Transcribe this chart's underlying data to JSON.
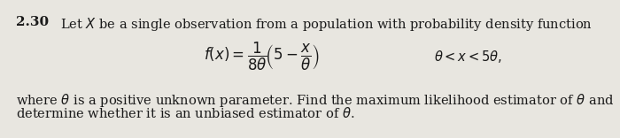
{
  "problem_number": "2.30",
  "line1": "Let $X$ be a single observation from a population with probability density function",
  "formula": "$f(x) = \\dfrac{1}{8\\theta}\\!\\left(5 - \\dfrac{x}{\\theta}\\right)$",
  "condition": "$\\theta < x < 5\\theta,$",
  "line2": "where $\\theta$ is a positive unknown parameter. Find the maximum likelihood estimator of $\\theta$ and",
  "line3": "determine whether it is an unbiased estimator of $\\theta$.",
  "bg_color": "#e8e6e0",
  "text_color": "#1a1a1a",
  "font_size_main": 10.5,
  "font_size_number": 11,
  "font_size_formula": 12
}
